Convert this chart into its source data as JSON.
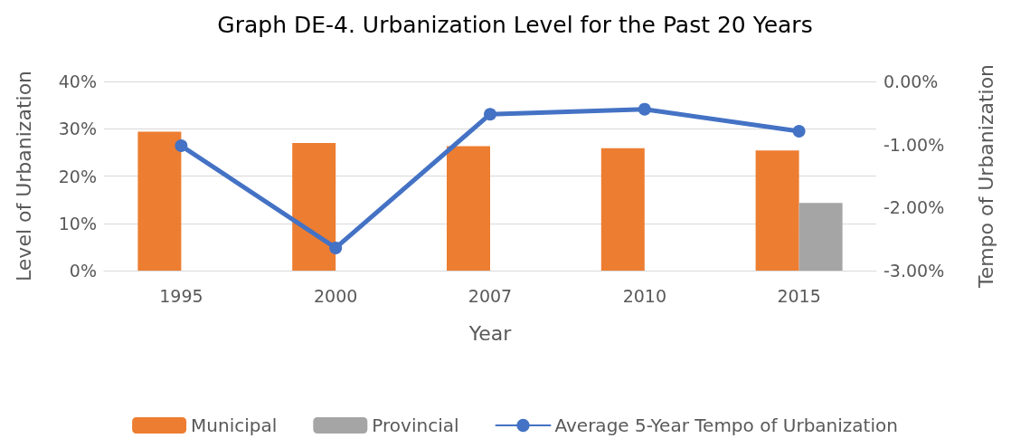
{
  "chart_data": {
    "type": "bar",
    "title": "Graph DE-4. Urbanization Level for the Past 20 Years",
    "xlabel": "Year",
    "ylabel": "Level of Urbanization",
    "y2label": "Tempo of Urbanization",
    "categories": [
      "1995",
      "2000",
      "2007",
      "2010",
      "2015"
    ],
    "series": [
      {
        "name": "Municipal",
        "color": "#ed7d31",
        "values": [
          29.4,
          27.0,
          26.3,
          25.9,
          25.4
        ]
      },
      {
        "name": "Provincial",
        "color": "#a5a5a5",
        "values": [
          null,
          null,
          null,
          null,
          14.3
        ]
      },
      {
        "name": "Average 5-Year Tempo of Urbanization",
        "type": "line",
        "axis": "y2",
        "color": "#4472c4",
        "marker": "circle",
        "values": [
          -1.02,
          -2.64,
          -0.52,
          -0.44,
          -0.79
        ]
      }
    ],
    "ylim": [
      0,
      40
    ],
    "yticks": [
      {
        "value": 0,
        "label": "0%"
      },
      {
        "value": 10,
        "label": "10%"
      },
      {
        "value": 20,
        "label": "20%"
      },
      {
        "value": 30,
        "label": "30%"
      },
      {
        "value": 40,
        "label": "40%"
      }
    ],
    "y2lim": [
      -3,
      0
    ],
    "y2ticks": [
      {
        "value": -3,
        "label": "-3.00%"
      },
      {
        "value": -2,
        "label": "-2.00%"
      },
      {
        "value": -1,
        "label": "-1.00%"
      },
      {
        "value": 0,
        "label": "0.00%"
      }
    ],
    "grid": "y",
    "legend": "bottom"
  }
}
